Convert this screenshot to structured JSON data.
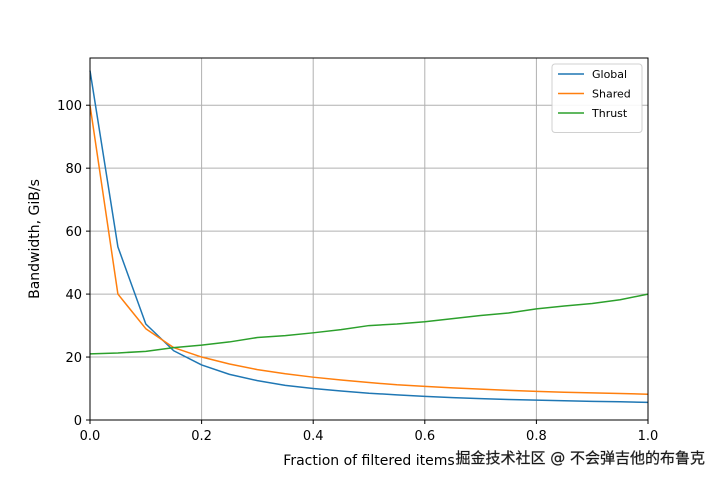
{
  "chart_data": {
    "type": "line",
    "title": "",
    "xlabel": "Fraction of filtered items",
    "ylabel": "Bandwidth, GiB/s",
    "xlim": [
      0,
      1
    ],
    "ylim": [
      0,
      115
    ],
    "xticks": [
      0,
      0.2,
      0.4,
      0.6,
      0.8,
      1.0
    ],
    "xtick_labels": [
      "0.0",
      "0.2",
      "0.4",
      "0.6",
      "0.8",
      "1.0"
    ],
    "yticks": [
      0,
      20,
      40,
      60,
      80,
      100
    ],
    "ytick_labels": [
      "0",
      "20",
      "40",
      "60",
      "80",
      "100"
    ],
    "grid": true,
    "legend_position": "top-right",
    "x": [
      0,
      0.05,
      0.1,
      0.15,
      0.2,
      0.25,
      0.3,
      0.35,
      0.4,
      0.45,
      0.5,
      0.55,
      0.6,
      0.65,
      0.7,
      0.75,
      0.8,
      0.85,
      0.9,
      0.95,
      1.0
    ],
    "series": [
      {
        "name": "Global",
        "color": "#1f77b4",
        "values": [
          111,
          55,
          30.5,
          22,
          17.5,
          14.5,
          12.5,
          11,
          10,
          9.2,
          8.5,
          8,
          7.5,
          7.1,
          6.8,
          6.5,
          6.3,
          6.1,
          5.9,
          5.8,
          5.6
        ]
      },
      {
        "name": "Shared",
        "color": "#ff7f0e",
        "values": [
          100,
          40,
          29,
          23,
          20,
          17.8,
          16,
          14.7,
          13.6,
          12.7,
          11.9,
          11.2,
          10.7,
          10.2,
          9.8,
          9.4,
          9.1,
          8.8,
          8.6,
          8.4,
          8.2
        ]
      },
      {
        "name": "Thrust",
        "color": "#2ca02c",
        "values": [
          21,
          21.3,
          21.8,
          23,
          23.8,
          24.8,
          26.2,
          26.8,
          27.7,
          28.7,
          30,
          30.5,
          31.2,
          32.2,
          33.2,
          34,
          35.3,
          36.2,
          37,
          38.2,
          40
        ]
      }
    ]
  },
  "watermark": "掘金技术社区 @ 不会弹吉他的布鲁克"
}
